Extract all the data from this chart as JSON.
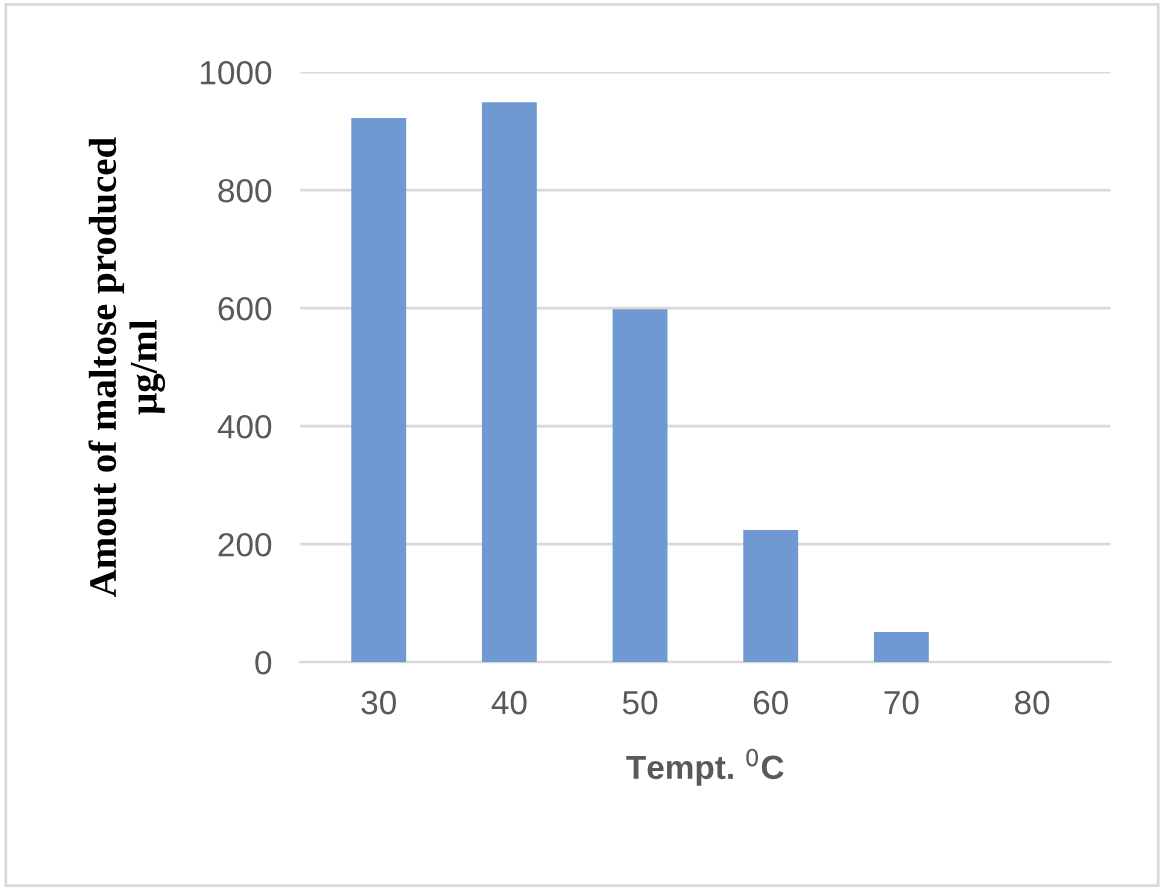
{
  "chart_data": {
    "type": "bar",
    "xlabel": "Tempt. $^{0}$C",
    "ylabel": "Amout of maltose produced\nμg/ml",
    "categories": [
      "30",
      "40",
      "50",
      "60",
      "70",
      "80"
    ],
    "values": [
      922,
      949,
      598,
      224,
      51,
      0
    ],
    "color": "#7099d3",
    "ylim": [
      0,
      1000
    ],
    "yticks": [
      0,
      200,
      400,
      600,
      800,
      1000
    ],
    "grid": "y"
  }
}
